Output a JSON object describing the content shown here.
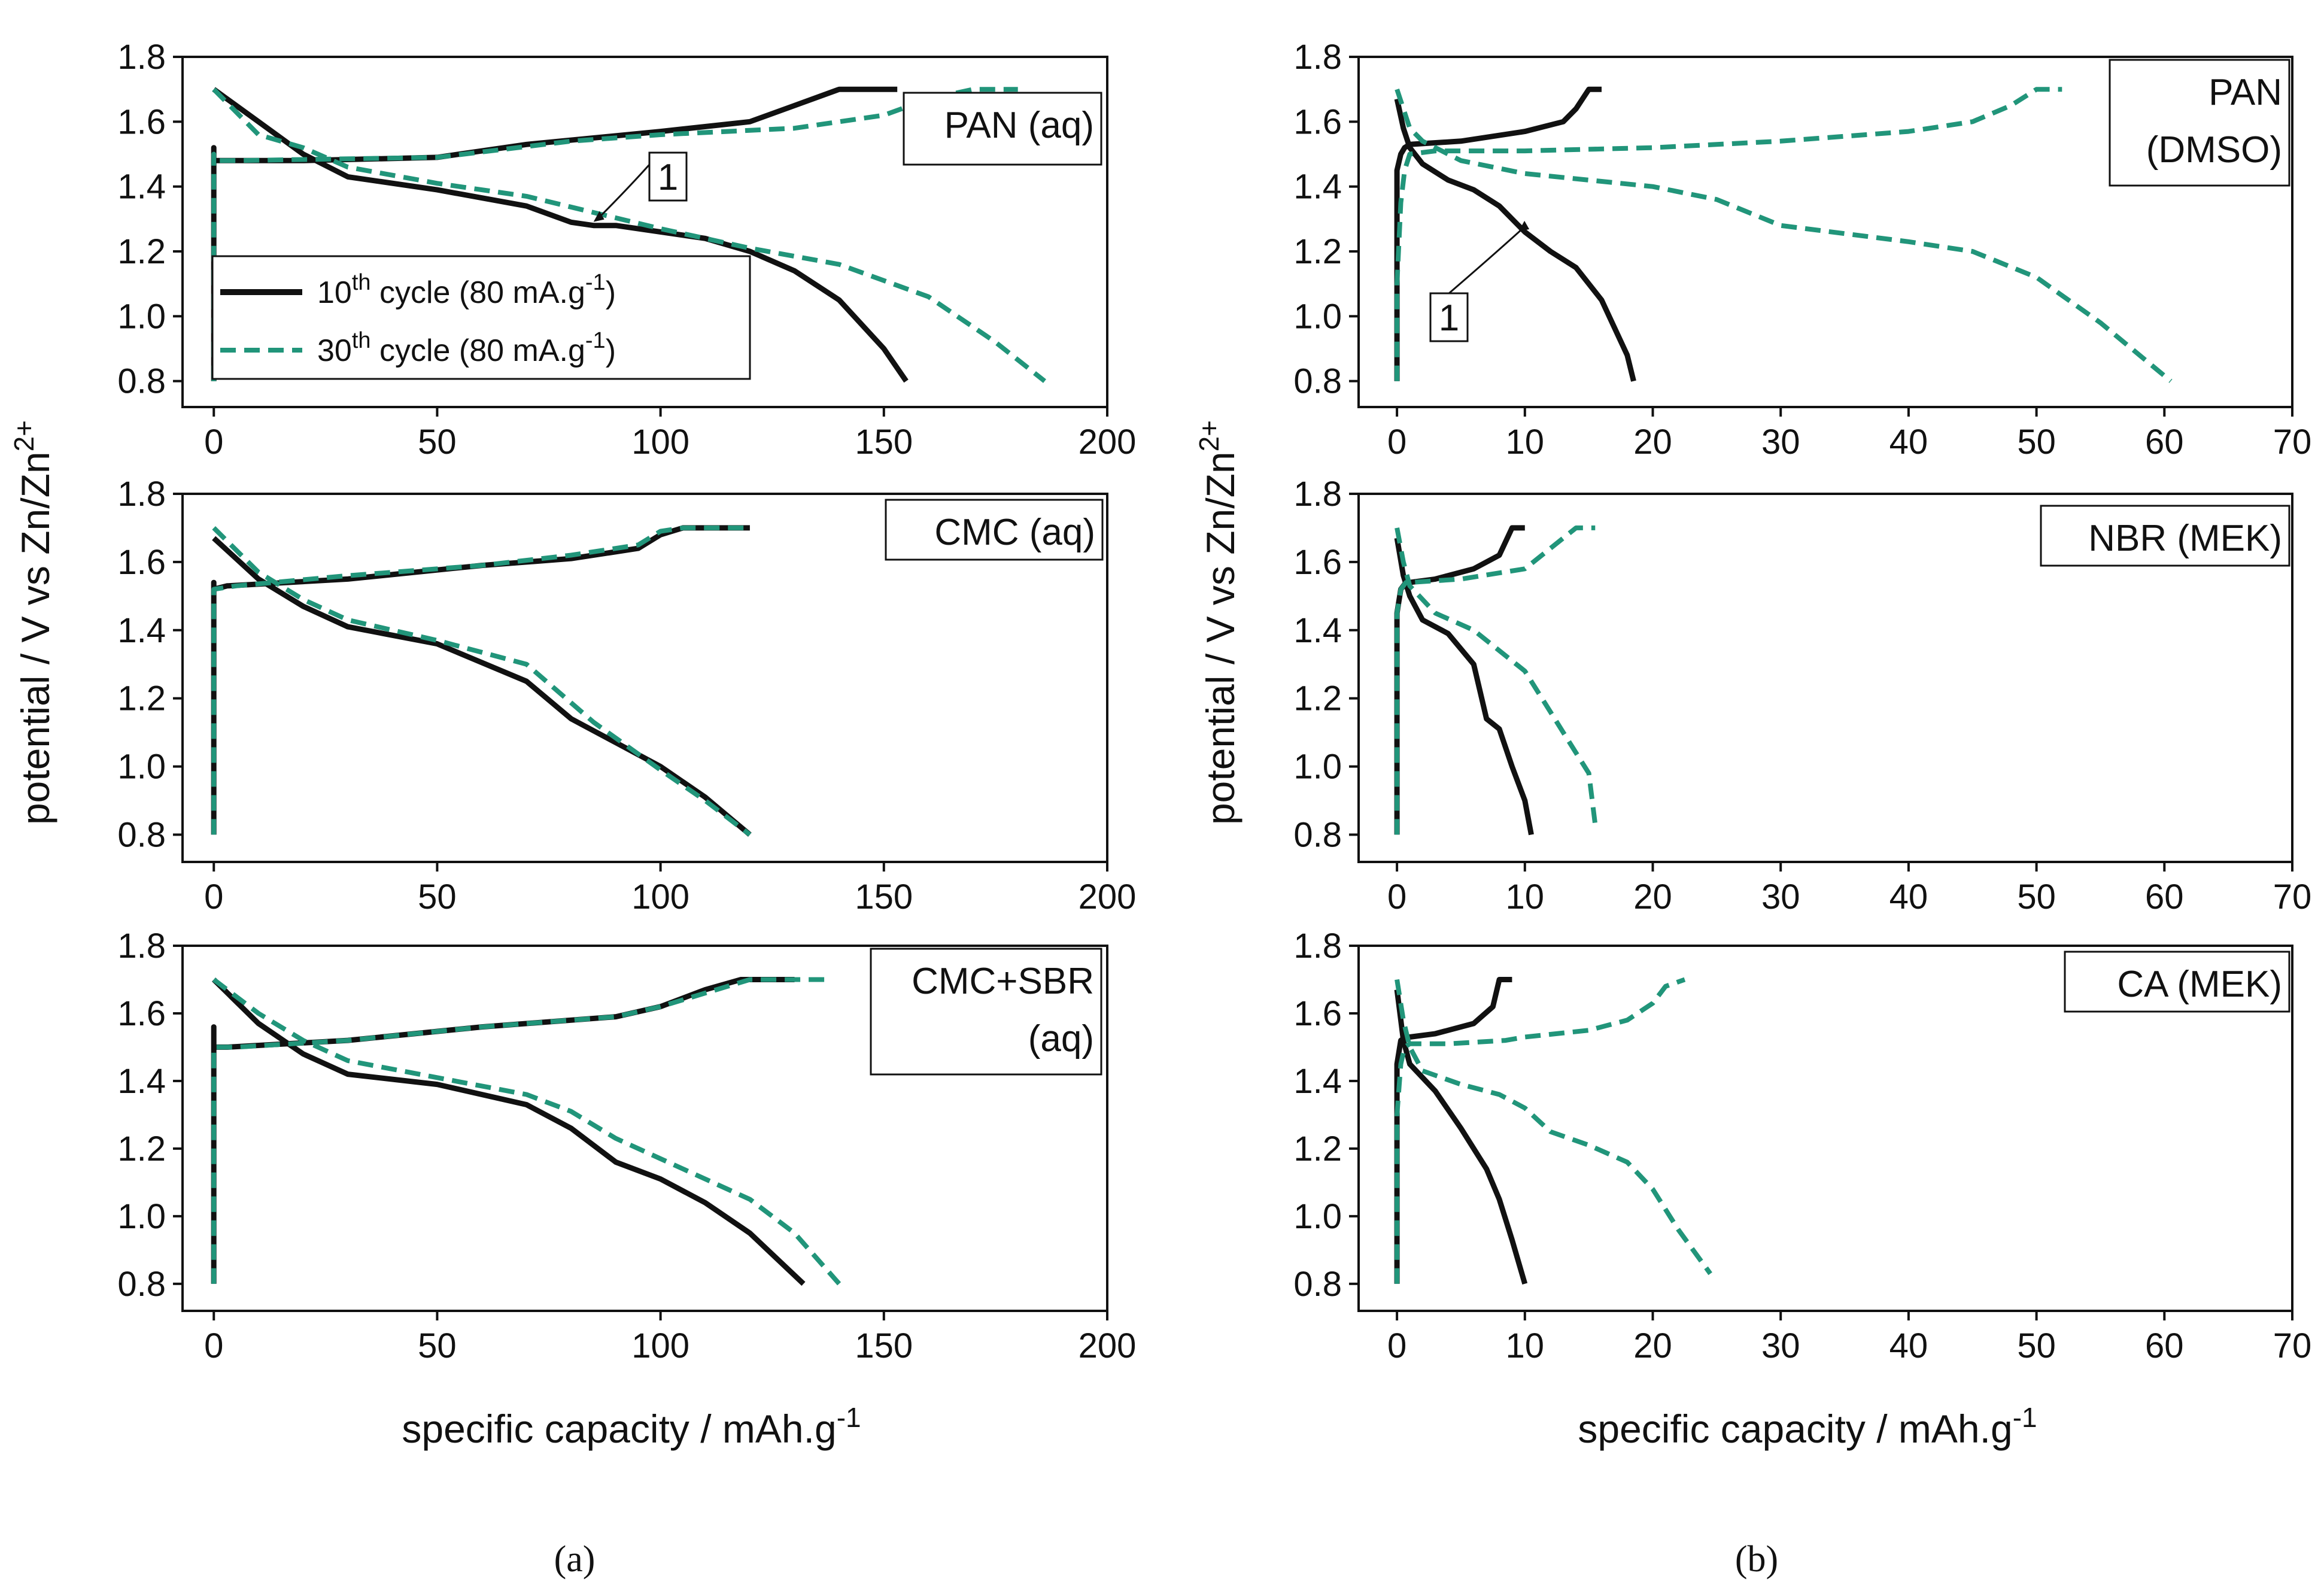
{
  "colors": {
    "cycle10": "#111111",
    "cycle30": "#21957a"
  },
  "y_axis_title": {
    "main": "potential / V vs Zn/Zn",
    "sup": "2+"
  },
  "x_axis_title": {
    "main": "specific capacity / mAh.g",
    "sup": "-1"
  },
  "panel_letters": {
    "a": "(a)",
    "b": "(b)"
  },
  "legend": [
    {
      "pre": "10",
      "sup": "th",
      "mid": " cycle (80 mA.g",
      "sup2": "-1",
      "post": ")"
    },
    {
      "pre": "30",
      "sup": "th",
      "mid": " cycle (80 mA.g",
      "sup2": "-1",
      "post": ")"
    }
  ],
  "chart_data": [
    {
      "type": "line",
      "panel": "a-top",
      "label": [
        "PAN (aq)"
      ],
      "xlim": [
        -7,
        200
      ],
      "ylim": [
        0.72,
        1.8
      ],
      "xticks": [
        0,
        50,
        100,
        150,
        200
      ],
      "yticks": [
        0.8,
        1.0,
        1.2,
        1.4,
        1.6,
        1.8
      ],
      "annotation": {
        "text": "1",
        "x": 85,
        "y": 1.28
      },
      "series": [
        {
          "legend_index": 0,
          "role": "charge",
          "x": [
            0,
            0,
            0,
            2,
            20,
            50,
            70,
            100,
            120,
            130,
            140,
            150,
            153
          ],
          "y": [
            0.8,
            1.52,
            1.48,
            1.48,
            1.48,
            1.49,
            1.53,
            1.57,
            1.6,
            1.65,
            1.7,
            1.7,
            1.7
          ]
        },
        {
          "legend_index": 0,
          "role": "discharge",
          "x": [
            0,
            10,
            20,
            30,
            50,
            70,
            80,
            85,
            90,
            110,
            120,
            130,
            140,
            150,
            155
          ],
          "y": [
            1.7,
            1.6,
            1.5,
            1.43,
            1.39,
            1.34,
            1.29,
            1.28,
            1.28,
            1.24,
            1.2,
            1.14,
            1.05,
            0.9,
            0.8
          ]
        },
        {
          "legend_index": 1,
          "role": "charge",
          "x": [
            0,
            0,
            0,
            5,
            50,
            80,
            100,
            130,
            150,
            160,
            170,
            180
          ],
          "y": [
            0.8,
            1.5,
            1.48,
            1.48,
            1.49,
            1.54,
            1.56,
            1.58,
            1.62,
            1.67,
            1.7,
            1.7
          ]
        },
        {
          "legend_index": 1,
          "role": "discharge",
          "x": [
            0,
            10,
            20,
            30,
            50,
            70,
            85,
            100,
            120,
            140,
            160,
            175,
            186
          ],
          "y": [
            1.7,
            1.56,
            1.52,
            1.46,
            1.41,
            1.37,
            1.32,
            1.27,
            1.21,
            1.16,
            1.06,
            0.92,
            0.8
          ]
        }
      ]
    },
    {
      "type": "line",
      "panel": "a-middle",
      "label": [
        "CMC (aq)"
      ],
      "xlim": [
        -7,
        200
      ],
      "ylim": [
        0.72,
        1.8
      ],
      "xticks": [
        0,
        50,
        100,
        150,
        200
      ],
      "yticks": [
        0.8,
        1.0,
        1.2,
        1.4,
        1.6,
        1.8
      ],
      "series": [
        {
          "legend_index": 0,
          "role": "charge",
          "x": [
            0,
            0,
            0,
            3,
            30,
            60,
            80,
            95,
            100,
            105,
            120
          ],
          "y": [
            0.8,
            1.54,
            1.52,
            1.53,
            1.55,
            1.59,
            1.61,
            1.64,
            1.68,
            1.7,
            1.7
          ]
        },
        {
          "legend_index": 0,
          "role": "discharge",
          "x": [
            0,
            10,
            20,
            30,
            50,
            70,
            80,
            90,
            100,
            110,
            120
          ],
          "y": [
            1.67,
            1.55,
            1.47,
            1.41,
            1.36,
            1.25,
            1.14,
            1.07,
            1.0,
            0.91,
            0.8
          ]
        },
        {
          "legend_index": 1,
          "role": "charge",
          "x": [
            0,
            0,
            0,
            5,
            30,
            60,
            80,
            95,
            100,
            105,
            119
          ],
          "y": [
            0.8,
            1.52,
            1.52,
            1.53,
            1.56,
            1.59,
            1.62,
            1.65,
            1.69,
            1.7,
            1.7
          ]
        },
        {
          "legend_index": 1,
          "role": "discharge",
          "x": [
            0,
            10,
            20,
            30,
            50,
            70,
            85,
            100,
            110,
            120
          ],
          "y": [
            1.7,
            1.57,
            1.49,
            1.43,
            1.37,
            1.3,
            1.13,
            0.99,
            0.9,
            0.8
          ]
        }
      ]
    },
    {
      "type": "line",
      "panel": "a-bottom",
      "label": [
        "CMC+SBR",
        "(aq)"
      ],
      "xlim": [
        -7,
        200
      ],
      "ylim": [
        0.72,
        1.8
      ],
      "xticks": [
        0,
        50,
        100,
        150,
        200
      ],
      "yticks": [
        0.8,
        1.0,
        1.2,
        1.4,
        1.6,
        1.8
      ],
      "series": [
        {
          "legend_index": 0,
          "role": "charge",
          "x": [
            0,
            0,
            0,
            3,
            30,
            60,
            90,
            100,
            110,
            118,
            130
          ],
          "y": [
            0.8,
            1.56,
            1.5,
            1.5,
            1.52,
            1.56,
            1.59,
            1.62,
            1.67,
            1.7,
            1.7
          ]
        },
        {
          "legend_index": 0,
          "role": "discharge",
          "x": [
            0,
            10,
            20,
            30,
            50,
            70,
            80,
            90,
            100,
            110,
            120,
            132
          ],
          "y": [
            1.7,
            1.57,
            1.48,
            1.42,
            1.39,
            1.33,
            1.26,
            1.16,
            1.11,
            1.04,
            0.95,
            0.8
          ]
        },
        {
          "legend_index": 1,
          "role": "charge",
          "x": [
            0,
            0,
            0,
            5,
            30,
            60,
            90,
            100,
            110,
            120,
            138
          ],
          "y": [
            0.8,
            1.5,
            1.5,
            1.5,
            1.52,
            1.56,
            1.59,
            1.62,
            1.66,
            1.7,
            1.7
          ]
        },
        {
          "legend_index": 1,
          "role": "discharge",
          "x": [
            0,
            10,
            20,
            30,
            50,
            70,
            80,
            90,
            100,
            120,
            130,
            140
          ],
          "y": [
            1.7,
            1.6,
            1.52,
            1.46,
            1.41,
            1.36,
            1.31,
            1.23,
            1.17,
            1.05,
            0.95,
            0.8
          ]
        }
      ]
    },
    {
      "type": "line",
      "panel": "b-top",
      "label": [
        "PAN",
        "(DMSO)"
      ],
      "xlim": [
        -3,
        70
      ],
      "ylim": [
        0.72,
        1.8
      ],
      "xticks": [
        0,
        10,
        20,
        30,
        40,
        50,
        60,
        70
      ],
      "yticks": [
        0.8,
        1.0,
        1.2,
        1.4,
        1.6,
        1.8
      ],
      "annotation": {
        "text": "1",
        "x": 9.5,
        "y": 1.25
      },
      "series": [
        {
          "legend_index": 0,
          "role": "charge",
          "x": [
            0,
            0,
            0.3,
            0.6,
            1,
            5,
            10,
            13,
            14,
            15,
            16
          ],
          "y": [
            0.8,
            1.45,
            1.5,
            1.52,
            1.53,
            1.54,
            1.57,
            1.6,
            1.64,
            1.7,
            1.7
          ]
        },
        {
          "legend_index": 0,
          "role": "discharge",
          "x": [
            0,
            0.5,
            1,
            2,
            4,
            6,
            8,
            10,
            12,
            14,
            16,
            18,
            18.5
          ],
          "y": [
            1.67,
            1.58,
            1.52,
            1.47,
            1.42,
            1.39,
            1.34,
            1.26,
            1.2,
            1.15,
            1.05,
            0.88,
            0.8
          ]
        },
        {
          "legend_index": 1,
          "role": "charge",
          "x": [
            0,
            0,
            0.3,
            0.6,
            1,
            3,
            10,
            20,
            30,
            40,
            45,
            48,
            50,
            52
          ],
          "y": [
            0.8,
            1.1,
            1.35,
            1.45,
            1.5,
            1.51,
            1.51,
            1.52,
            1.54,
            1.57,
            1.6,
            1.65,
            1.7,
            1.7
          ]
        },
        {
          "legend_index": 1,
          "role": "discharge",
          "x": [
            0,
            1,
            2,
            5,
            10,
            20,
            25,
            30,
            40,
            45,
            50,
            55,
            60.5
          ],
          "y": [
            1.7,
            1.58,
            1.54,
            1.48,
            1.44,
            1.4,
            1.36,
            1.28,
            1.23,
            1.2,
            1.12,
            0.98,
            0.8
          ]
        }
      ]
    },
    {
      "type": "line",
      "panel": "b-middle",
      "label": [
        "NBR (MEK)"
      ],
      "xlim": [
        -3,
        70
      ],
      "ylim": [
        0.72,
        1.8
      ],
      "xticks": [
        0,
        10,
        20,
        30,
        40,
        50,
        60,
        70
      ],
      "yticks": [
        0.8,
        1.0,
        1.2,
        1.4,
        1.6,
        1.8
      ],
      "series": [
        {
          "legend_index": 0,
          "role": "charge",
          "x": [
            0,
            0,
            0.3,
            0.7,
            1,
            3,
            6,
            8,
            9,
            10
          ],
          "y": [
            0.8,
            1.45,
            1.52,
            1.54,
            1.54,
            1.55,
            1.58,
            1.62,
            1.7,
            1.7
          ]
        },
        {
          "legend_index": 0,
          "role": "discharge",
          "x": [
            0,
            0.5,
            1,
            2,
            4,
            6,
            7,
            8,
            9,
            10,
            10.5
          ],
          "y": [
            1.67,
            1.56,
            1.5,
            1.43,
            1.39,
            1.3,
            1.14,
            1.11,
            1.0,
            0.9,
            0.8
          ]
        },
        {
          "legend_index": 1,
          "role": "charge",
          "x": [
            0,
            0,
            0.3,
            0.7,
            1,
            5,
            10,
            12,
            14,
            15.5
          ],
          "y": [
            0.8,
            1.45,
            1.52,
            1.54,
            1.54,
            1.55,
            1.58,
            1.64,
            1.7,
            1.7
          ]
        },
        {
          "legend_index": 1,
          "role": "discharge",
          "x": [
            0,
            0.5,
            1,
            3,
            6,
            10,
            13,
            15,
            15.5
          ],
          "y": [
            1.7,
            1.6,
            1.53,
            1.45,
            1.4,
            1.28,
            1.1,
            0.98,
            0.83
          ]
        }
      ]
    },
    {
      "type": "line",
      "panel": "b-bottom",
      "label": [
        "CA (MEK)"
      ],
      "xlim": [
        -3,
        70
      ],
      "ylim": [
        0.72,
        1.8
      ],
      "xticks": [
        0,
        10,
        20,
        30,
        40,
        50,
        60,
        70
      ],
      "yticks": [
        0.8,
        1.0,
        1.2,
        1.4,
        1.6,
        1.8
      ],
      "series": [
        {
          "legend_index": 0,
          "role": "charge",
          "x": [
            0,
            0,
            0.3,
            0.7,
            1,
            3,
            6,
            7.5,
            8,
            9
          ],
          "y": [
            0.8,
            1.45,
            1.52,
            1.53,
            1.53,
            1.54,
            1.57,
            1.62,
            1.7,
            1.7
          ]
        },
        {
          "legend_index": 0,
          "role": "discharge",
          "x": [
            0,
            0.5,
            1,
            3,
            5,
            7,
            8,
            9,
            10
          ],
          "y": [
            1.67,
            1.52,
            1.45,
            1.37,
            1.26,
            1.14,
            1.05,
            0.93,
            0.8
          ]
        },
        {
          "legend_index": 1,
          "role": "charge",
          "x": [
            0,
            0,
            0.3,
            0.6,
            1,
            4,
            8.5,
            10,
            15,
            18,
            20,
            21,
            22.5
          ],
          "y": [
            0.8,
            1.3,
            1.45,
            1.5,
            1.51,
            1.51,
            1.52,
            1.53,
            1.55,
            1.58,
            1.63,
            1.68,
            1.7
          ]
        },
        {
          "legend_index": 1,
          "role": "discharge",
          "x": [
            0,
            0.5,
            1,
            2,
            5,
            8,
            10,
            12,
            15,
            18,
            20,
            22,
            24.5
          ],
          "y": [
            1.7,
            1.58,
            1.5,
            1.43,
            1.39,
            1.36,
            1.32,
            1.25,
            1.21,
            1.16,
            1.08,
            0.96,
            0.83
          ]
        }
      ]
    }
  ]
}
